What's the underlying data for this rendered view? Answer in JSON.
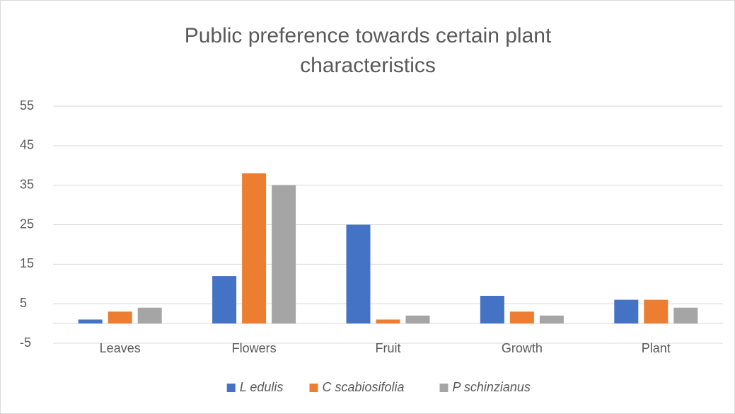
{
  "chart_data": {
    "type": "bar",
    "title": "Public preference towards certain plant characteristics",
    "categories": [
      "Leaves",
      "Flowers",
      "Fruit",
      "Growth",
      "Plant"
    ],
    "series": [
      {
        "name": "L edulis",
        "color": "#4472c4",
        "values": [
          1,
          12,
          25,
          7,
          6
        ]
      },
      {
        "name": "C scabiosifolia",
        "color": "#ed7d31",
        "values": [
          3,
          38,
          1,
          3,
          6
        ]
      },
      {
        "name": "P schinzianus",
        "color": "#a5a5a5",
        "values": [
          4,
          35,
          2,
          2,
          4
        ]
      }
    ],
    "ylim": [
      -5,
      55
    ],
    "yticks": [
      -5,
      5,
      15,
      25,
      35,
      45,
      55
    ],
    "grid": true,
    "legend": "bottom"
  }
}
